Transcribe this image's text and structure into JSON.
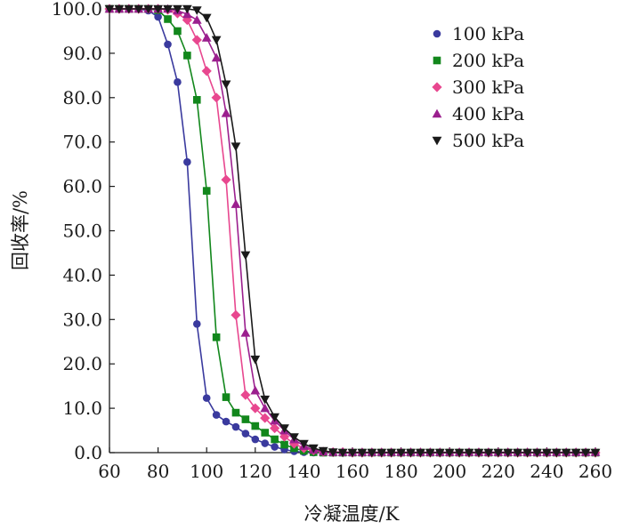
{
  "chart_data": {
    "type": "line",
    "title": "",
    "xlabel": "冷凝温度/K",
    "ylabel": "回收率/%",
    "xlim": [
      60,
      260
    ],
    "ylim": [
      0,
      100
    ],
    "xticks": [
      "60",
      "80",
      "100",
      "120",
      "140",
      "160",
      "180",
      "200",
      "220",
      "240",
      "260"
    ],
    "yticks": [
      "0.0",
      "10.0",
      "20.0",
      "30.0",
      "40.0",
      "50.0",
      "60.0",
      "70.0",
      "80.0",
      "90.0",
      "100.0"
    ],
    "legend_position": "top-right",
    "grid": false,
    "series": [
      {
        "name": "100 kPa",
        "color": "#3a3a9e",
        "marker": "circle",
        "x": [
          60,
          64,
          68,
          72,
          76,
          80,
          84,
          88,
          92,
          96,
          100,
          104,
          108,
          112,
          116,
          120,
          124,
          128,
          132,
          136,
          140,
          144,
          148,
          152,
          156,
          160,
          164,
          168,
          172,
          176,
          180,
          184,
          188,
          192,
          196,
          200,
          204,
          208,
          212,
          216,
          220,
          224,
          228,
          232,
          236,
          240,
          244,
          248,
          252,
          256,
          260
        ],
        "y": [
          100,
          100,
          100,
          100,
          99.6,
          98.2,
          92,
          83.5,
          65.5,
          29,
          12.3,
          8.5,
          7,
          5.8,
          4.3,
          3,
          2.1,
          1.3,
          0.7,
          0.3,
          0.1,
          0,
          0,
          0,
          0,
          0,
          0,
          0,
          0,
          0,
          0,
          0,
          0,
          0,
          0,
          0,
          0,
          0,
          0,
          0,
          0,
          0,
          0,
          0,
          0,
          0,
          0,
          0,
          0,
          0,
          0
        ]
      },
      {
        "name": "200 kPa",
        "color": "#12871c",
        "marker": "square",
        "x": [
          60,
          64,
          68,
          72,
          76,
          80,
          84,
          88,
          92,
          96,
          100,
          104,
          108,
          112,
          116,
          120,
          124,
          128,
          132,
          136,
          140,
          144,
          148,
          152,
          156,
          160,
          164,
          168,
          172,
          176,
          180,
          184,
          188,
          192,
          196,
          200,
          204,
          208,
          212,
          216,
          220,
          224,
          228,
          232,
          236,
          240,
          244,
          248,
          252,
          256,
          260
        ],
        "y": [
          100,
          100,
          100,
          100,
          100,
          99.7,
          97.7,
          95,
          89.5,
          79.5,
          59,
          26,
          12.5,
          9,
          7.5,
          6,
          4.5,
          3,
          1.8,
          1,
          0.4,
          0.1,
          0,
          0,
          0,
          0,
          0,
          0,
          0,
          0,
          0,
          0,
          0,
          0,
          0,
          0,
          0,
          0,
          0,
          0,
          0,
          0,
          0,
          0,
          0,
          0,
          0,
          0,
          0,
          0,
          0
        ]
      },
      {
        "name": "300 kPa",
        "color": "#e8478f",
        "marker": "diamond",
        "x": [
          60,
          64,
          68,
          72,
          76,
          80,
          84,
          88,
          92,
          96,
          100,
          104,
          108,
          112,
          116,
          120,
          124,
          128,
          132,
          136,
          140,
          144,
          148,
          152,
          156,
          160,
          164,
          168,
          172,
          176,
          180,
          184,
          188,
          192,
          196,
          200,
          204,
          208,
          212,
          216,
          220,
          224,
          228,
          232,
          236,
          240,
          244,
          248,
          252,
          256,
          260
        ],
        "y": [
          100,
          100,
          100,
          100,
          100,
          100,
          99.8,
          99,
          97.5,
          93,
          86,
          80,
          61.5,
          31,
          13,
          10,
          7.8,
          5.5,
          3.6,
          2,
          1,
          0.5,
          0.2,
          0.1,
          0.1,
          0,
          0,
          0,
          0,
          0,
          0,
          0,
          0,
          0,
          0,
          0,
          0,
          0,
          0,
          0,
          0,
          0,
          0,
          0,
          0,
          0,
          0,
          0,
          0,
          0,
          0
        ]
      },
      {
        "name": "400 kPa",
        "color": "#9b1f8e",
        "marker": "triangle-up",
        "x": [
          60,
          64,
          68,
          72,
          76,
          80,
          84,
          88,
          92,
          96,
          100,
          104,
          108,
          112,
          116,
          120,
          124,
          128,
          132,
          136,
          140,
          144,
          148,
          152,
          156,
          160,
          164,
          168,
          172,
          176,
          180,
          184,
          188,
          192,
          196,
          200,
          204,
          208,
          212,
          216,
          220,
          224,
          228,
          232,
          236,
          240,
          244,
          248,
          252,
          256,
          260
        ],
        "y": [
          100,
          100,
          100,
          100,
          100,
          100,
          100,
          99.6,
          98.8,
          97.5,
          93.5,
          89,
          76.5,
          56,
          27,
          14,
          10,
          7.2,
          5,
          3,
          1.5,
          0.6,
          0.2,
          0.1,
          0.1,
          0.1,
          0.1,
          0.1,
          0.1,
          0.1,
          0.1,
          0.1,
          0.1,
          0.1,
          0.1,
          0.1,
          0.1,
          0.1,
          0.1,
          0.1,
          0.1,
          0.1,
          0.1,
          0.1,
          0.1,
          0.1,
          0.1,
          0.1,
          0.1,
          0.1,
          0.1
        ]
      },
      {
        "name": "500 kPa",
        "color": "#1a1a1a",
        "marker": "triangle-down",
        "x": [
          60,
          64,
          68,
          72,
          76,
          80,
          84,
          88,
          92,
          96,
          100,
          104,
          108,
          112,
          116,
          120,
          124,
          128,
          132,
          136,
          140,
          144,
          148,
          152,
          156,
          160,
          164,
          168,
          172,
          176,
          180,
          184,
          188,
          192,
          196,
          200,
          204,
          208,
          212,
          216,
          220,
          224,
          228,
          232,
          236,
          240,
          244,
          248,
          252,
          256,
          260
        ],
        "y": [
          100,
          100,
          100,
          100,
          100,
          100,
          100,
          100,
          100,
          99.7,
          98,
          93,
          83,
          69,
          44.5,
          21,
          12,
          8,
          5.5,
          3.5,
          2,
          1,
          0.4,
          0.1,
          0,
          0,
          0,
          0,
          0,
          0,
          0,
          0,
          0,
          0,
          0,
          0,
          0,
          0,
          0,
          0,
          0,
          0,
          0,
          0,
          0,
          0,
          0,
          0,
          0,
          0,
          0
        ]
      }
    ]
  }
}
